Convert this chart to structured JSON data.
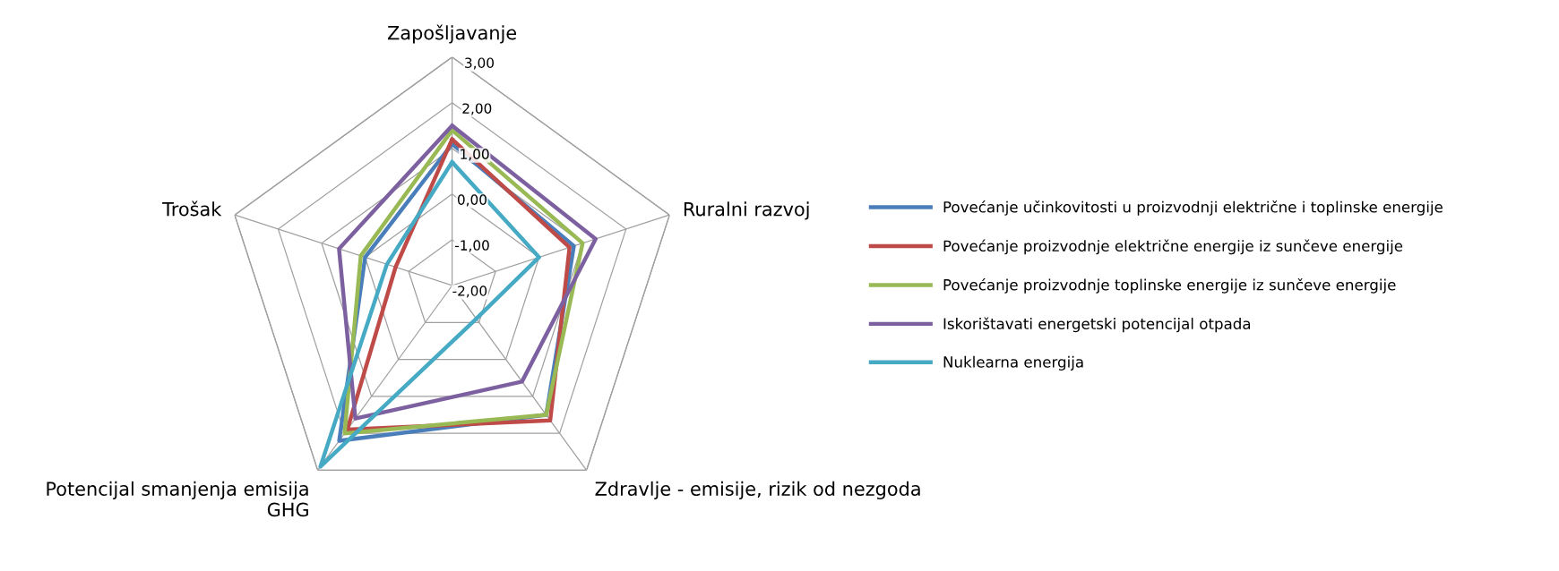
{
  "chart_data": {
    "type": "radar",
    "categories": [
      "Zapošljavanje",
      "Ruralni razvoj",
      "Zdravlje - emisije, rizik od nezgoda",
      "Potencijal smanjenja emisija GHG",
      "Trošak"
    ],
    "series": [
      {
        "name": "Povećanje učinkovitosti u proizvodnji električne i toplinske energije",
        "color": "#4a7ebb",
        "values": [
          1.1,
          0.8,
          1.5,
          2.2,
          0.0
        ]
      },
      {
        "name": "Povećanje proizvodnje električne energije iz sunčeve energije",
        "color": "#be4b48",
        "values": [
          1.2,
          0.7,
          1.65,
          1.9,
          -0.7
        ]
      },
      {
        "name": "Povećanje proizvodnje toplinske energije iz sunčeve energije",
        "color": "#98b954",
        "values": [
          1.4,
          1.0,
          1.5,
          2.0,
          0.1
        ]
      },
      {
        "name": "Iskorištavati energetski potencijal otpada",
        "color": "#7d60a0",
        "values": [
          1.5,
          1.3,
          0.6,
          1.6,
          0.6
        ]
      },
      {
        "name": "Nuklearna energija",
        "color": "#46aac5",
        "values": [
          0.7,
          0.0,
          -1.1,
          2.9,
          -0.5
        ]
      }
    ],
    "ylim": [
      -2,
      3
    ],
    "yticks": [
      {
        "value": -2,
        "label": "-2,00"
      },
      {
        "value": -1,
        "label": "-1,00"
      },
      {
        "value": 0,
        "label": "0,00"
      },
      {
        "value": 1,
        "label": "1,00"
      },
      {
        "value": 2,
        "label": "2,00"
      },
      {
        "value": 3,
        "label": "3,00"
      }
    ],
    "grid": true,
    "legend": "right",
    "marker": "none",
    "line_style": "solid"
  }
}
